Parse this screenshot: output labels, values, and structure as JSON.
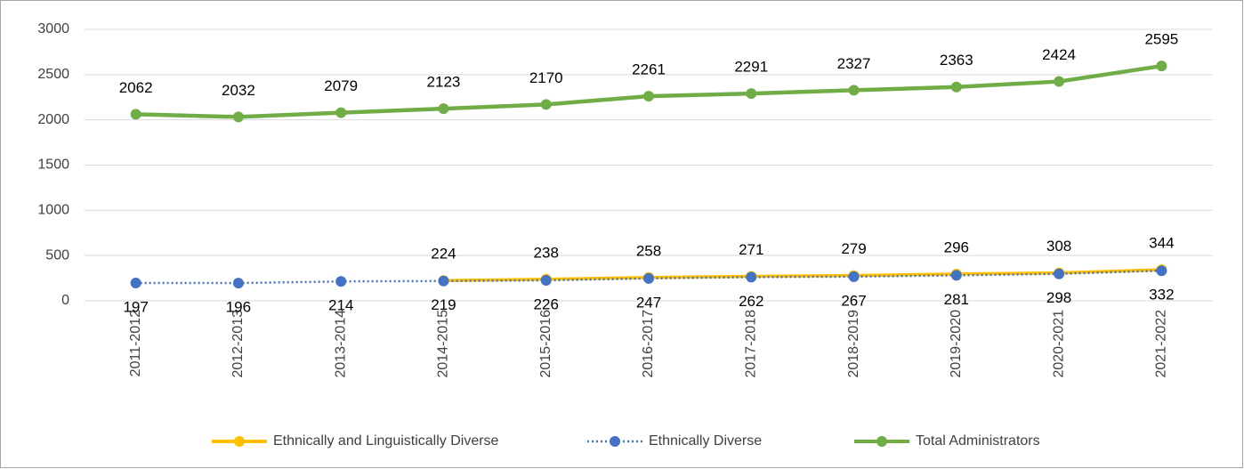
{
  "chart_data": {
    "type": "line",
    "categories": [
      "2011-2012",
      "2012-2013",
      "2013-2014",
      "2014-2015",
      "2015-2016",
      "2016-2017",
      "2017-2018",
      "2018-2019",
      "2019-2020",
      "2020-2021",
      "2021-2022"
    ],
    "series": [
      {
        "name": "Ethnically and Linguistically Diverse",
        "color": "#FFC000",
        "line_style": "solid",
        "label_position": "above",
        "values": [
          null,
          null,
          null,
          224,
          238,
          258,
          271,
          279,
          296,
          308,
          344
        ]
      },
      {
        "name": "Ethnically Diverse",
        "color": "#4472C4",
        "line_style": "dotted",
        "label_position": "below",
        "values": [
          197,
          196,
          214,
          219,
          226,
          247,
          262,
          267,
          281,
          298,
          332
        ]
      },
      {
        "name": "Total Administrators",
        "color": "#70AD47",
        "line_style": "solid",
        "label_position": "above",
        "values": [
          2062,
          2032,
          2079,
          2123,
          2170,
          2261,
          2291,
          2327,
          2363,
          2424,
          2595
        ]
      }
    ],
    "ylim": [
      0,
      3000
    ],
    "yticks": [
      0,
      500,
      1000,
      1500,
      2000,
      2500,
      3000
    ],
    "grid": true,
    "legend": "bottom"
  }
}
